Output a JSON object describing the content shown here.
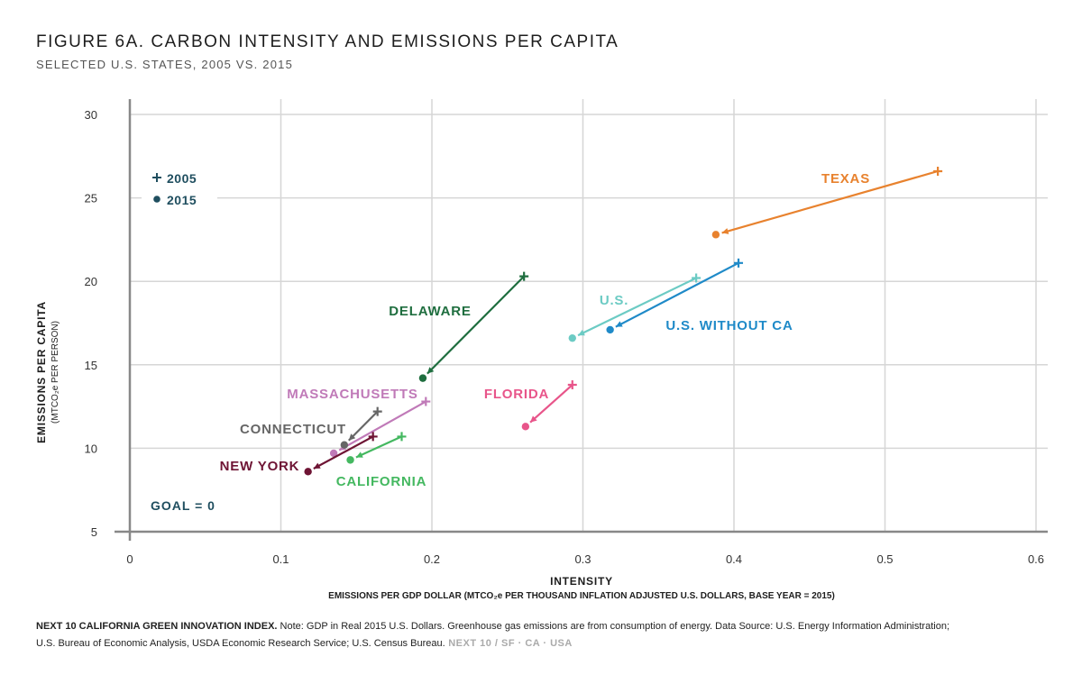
{
  "title": "FIGURE 6A. CARBON INTENSITY AND EMISSIONS PER CAPITA",
  "subtitle": "SELECTED U.S. STATES, 2005 VS. 2015",
  "footer": {
    "source_title": "NEXT 10 CALIFORNIA GREEN INNOVATION INDEX.",
    "note_line1": " Note: GDP in Real 2015 U.S. Dollars. Greenhouse gas emissions are from consumption of energy. Data Source: U.S. Energy Information Administration;",
    "note_line2": "U.S. Bureau of Economic Analysis, USDA Economic Research Service; U.S. Census Bureau.",
    "brand": " NEXT 10  /  SF · CA · USA"
  },
  "chart_data": {
    "type": "scatter",
    "xlabel": "INTENSITY",
    "xlabel_sub": "EMISSIONS PER GDP DOLLAR (MTCO₂e PER THOUSAND INFLATION ADJUSTED U.S. DOLLARS, BASE YEAR = 2015)",
    "ylabel": "EMISSIONS PER CAPITA",
    "ylabel_sub": "(MTCO₂e PER PERSON)",
    "xlim": [
      0,
      0.6
    ],
    "ylim": [
      5,
      30
    ],
    "x_ticks": [
      "0",
      "0.1",
      "0.2",
      "0.3",
      "0.4",
      "0.5",
      "0.6"
    ],
    "y_ticks": [
      "5",
      "10",
      "15",
      "20",
      "25",
      "30"
    ],
    "legend": {
      "placement": "top-left",
      "entries": [
        "2005",
        "2015"
      ],
      "marker_color": "#1f4e5f"
    },
    "annotation": "GOAL = 0",
    "series": [
      {
        "name": "TEXAS",
        "color": "#e8822e",
        "x2005": 0.535,
        "y2005": 26.6,
        "x2015": 0.388,
        "y2015": 22.8
      },
      {
        "name": "U.S. WITHOUT CA",
        "color": "#1f8ac8",
        "x2005": 0.403,
        "y2005": 21.1,
        "x2015": 0.318,
        "y2015": 17.1
      },
      {
        "name": "U.S.",
        "color": "#6ccbc4",
        "x2005": 0.375,
        "y2005": 20.2,
        "x2015": 0.293,
        "y2015": 16.6
      },
      {
        "name": "DELAWARE",
        "color": "#1f6e3f",
        "x2005": 0.261,
        "y2005": 20.3,
        "x2015": 0.194,
        "y2015": 14.2
      },
      {
        "name": "FLORIDA",
        "color": "#e8558a",
        "x2005": 0.293,
        "y2005": 13.8,
        "x2015": 0.262,
        "y2015": 11.3
      },
      {
        "name": "MASSACHUSETTS",
        "color": "#c07ab8",
        "x2005": 0.196,
        "y2005": 12.8,
        "x2015": 0.135,
        "y2015": 9.7
      },
      {
        "name": "CONNECTICUT",
        "color": "#666666",
        "x2005": 0.164,
        "y2005": 12.2,
        "x2015": 0.142,
        "y2015": 10.2
      },
      {
        "name": "CALIFORNIA",
        "color": "#44b860",
        "x2005": 0.18,
        "y2005": 10.7,
        "x2015": 0.146,
        "y2015": 9.3
      },
      {
        "name": "NEW YORK",
        "color": "#6e1434",
        "x2005": 0.161,
        "y2005": 10.7,
        "x2015": 0.118,
        "y2015": 8.6
      }
    ]
  }
}
